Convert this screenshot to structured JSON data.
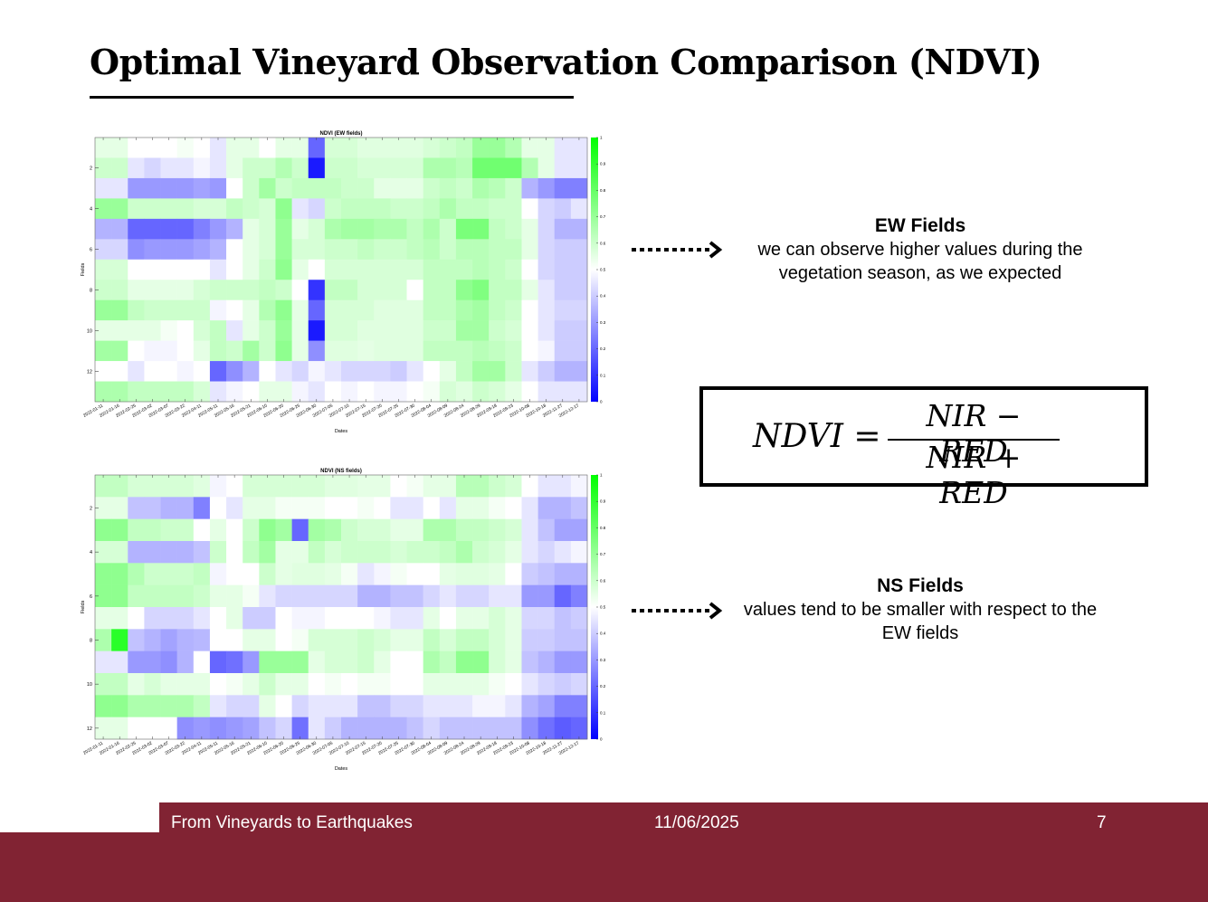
{
  "slide": {
    "title": "Optimal Vineyard Observation Comparison (NDVI)",
    "footer": {
      "left": "From Vineyards to Earthquakes",
      "center": "11/06/2025",
      "right": "7"
    },
    "accent_color": "#812333"
  },
  "notes": {
    "ew": {
      "heading": "EW Fields",
      "body": "we can observe higher values during the vegetation season, as we expected"
    },
    "ns": {
      "heading": "NS Fields",
      "body": "values tend to be smaller with respect to the EW fields"
    },
    "arrow_icon": "dotted-arrow-right"
  },
  "formula": {
    "lhs": "NDVI =",
    "numerator": "NIR − RED",
    "denominator": "NIR + RED"
  },
  "chart_data": [
    {
      "type": "heatmap",
      "title": "NDVI (EW fields)",
      "xlabel": "Dates",
      "ylabel": "Fields",
      "x_tick_labels": [
        "2022-01-11",
        "2022-01-16",
        "2022-02-25",
        "2022-03-02",
        "2022-03-07",
        "2022-03-22",
        "2022-04-11",
        "2022-05-11",
        "2022-05-16",
        "2022-05-21",
        "2022-06-10",
        "2022-06-20",
        "2022-06-25",
        "2022-06-30",
        "2022-07-05",
        "2022-07-10",
        "2022-07-15",
        "2022-07-20",
        "2022-07-25",
        "2022-07-30",
        "2022-08-04",
        "2022-08-09",
        "2022-08-24",
        "2022-08-29",
        "2022-09-18",
        "2022-09-23",
        "2022-10-08",
        "2022-10-18",
        "2022-11-27",
        "2022-12-17"
      ],
      "y_tick_labels": [
        "2",
        "4",
        "6",
        "8",
        "10",
        "12"
      ],
      "colorbar_ticks": [
        "0",
        "0.1",
        "0.2",
        "0.3",
        "0.4",
        "0.5",
        "0.6",
        "0.7",
        "0.8",
        "0.9",
        "1"
      ],
      "colormap": [
        "#0000ff",
        "#ffffff",
        "#00ff00"
      ],
      "vmin": 0,
      "vmax": 1,
      "values": [
        [
          0.55,
          0.55,
          0.5,
          0.5,
          0.5,
          0.52,
          0.5,
          0.45,
          0.55,
          0.55,
          0.5,
          0.55,
          0.55,
          0.2,
          0.58,
          0.58,
          0.56,
          0.56,
          0.56,
          0.56,
          0.58,
          0.6,
          0.62,
          0.7,
          0.7,
          0.65,
          0.55,
          0.55,
          0.45,
          0.45
        ],
        [
          0.6,
          0.6,
          0.45,
          0.42,
          0.45,
          0.45,
          0.48,
          0.45,
          0.55,
          0.6,
          0.6,
          0.65,
          0.6,
          0.05,
          0.6,
          0.6,
          0.58,
          0.58,
          0.58,
          0.58,
          0.66,
          0.66,
          0.64,
          0.78,
          0.78,
          0.78,
          0.65,
          0.55,
          0.45,
          0.45
        ],
        [
          0.45,
          0.45,
          0.3,
          0.3,
          0.3,
          0.3,
          0.32,
          0.3,
          0.5,
          0.6,
          0.68,
          0.6,
          0.62,
          0.62,
          0.62,
          0.6,
          0.6,
          0.55,
          0.55,
          0.55,
          0.6,
          0.62,
          0.6,
          0.66,
          0.64,
          0.6,
          0.35,
          0.3,
          0.25,
          0.25
        ],
        [
          0.7,
          0.7,
          0.6,
          0.6,
          0.6,
          0.6,
          0.58,
          0.58,
          0.62,
          0.6,
          0.58,
          0.72,
          0.45,
          0.42,
          0.6,
          0.62,
          0.62,
          0.62,
          0.6,
          0.6,
          0.62,
          0.66,
          0.62,
          0.62,
          0.6,
          0.6,
          0.5,
          0.42,
          0.4,
          0.45
        ],
        [
          0.35,
          0.35,
          0.2,
          0.2,
          0.2,
          0.2,
          0.25,
          0.3,
          0.35,
          0.55,
          0.58,
          0.7,
          0.55,
          0.58,
          0.66,
          0.68,
          0.68,
          0.66,
          0.66,
          0.62,
          0.66,
          0.6,
          0.76,
          0.76,
          0.62,
          0.6,
          0.55,
          0.42,
          0.35,
          0.35
        ],
        [
          0.42,
          0.42,
          0.28,
          0.3,
          0.3,
          0.3,
          0.32,
          0.35,
          0.5,
          0.55,
          0.58,
          0.7,
          0.58,
          0.58,
          0.6,
          0.6,
          0.62,
          0.6,
          0.6,
          0.62,
          0.64,
          0.6,
          0.64,
          0.64,
          0.62,
          0.62,
          0.55,
          0.42,
          0.4,
          0.4
        ],
        [
          0.58,
          0.58,
          0.5,
          0.5,
          0.5,
          0.5,
          0.5,
          0.45,
          0.5,
          0.55,
          0.6,
          0.72,
          0.55,
          0.5,
          0.58,
          0.58,
          0.58,
          0.58,
          0.58,
          0.58,
          0.62,
          0.62,
          0.62,
          0.64,
          0.62,
          0.6,
          0.5,
          0.42,
          0.4,
          0.4
        ],
        [
          0.6,
          0.6,
          0.55,
          0.55,
          0.55,
          0.55,
          0.58,
          0.6,
          0.6,
          0.6,
          0.62,
          0.6,
          0.5,
          0.1,
          0.62,
          0.62,
          0.58,
          0.58,
          0.58,
          0.5,
          0.62,
          0.62,
          0.72,
          0.75,
          0.62,
          0.62,
          0.55,
          0.45,
          0.4,
          0.4
        ],
        [
          0.7,
          0.7,
          0.62,
          0.6,
          0.6,
          0.6,
          0.6,
          0.48,
          0.5,
          0.55,
          0.65,
          0.72,
          0.55,
          0.2,
          0.58,
          0.58,
          0.58,
          0.56,
          0.56,
          0.56,
          0.62,
          0.62,
          0.66,
          0.68,
          0.62,
          0.6,
          0.5,
          0.45,
          0.42,
          0.42
        ],
        [
          0.55,
          0.55,
          0.55,
          0.55,
          0.52,
          0.5,
          0.58,
          0.62,
          0.45,
          0.55,
          0.6,
          0.7,
          0.55,
          0.05,
          0.58,
          0.58,
          0.56,
          0.56,
          0.56,
          0.56,
          0.6,
          0.6,
          0.68,
          0.68,
          0.6,
          0.58,
          0.5,
          0.45,
          0.4,
          0.4
        ],
        [
          0.68,
          0.68,
          0.5,
          0.48,
          0.48,
          0.5,
          0.55,
          0.62,
          0.6,
          0.68,
          0.6,
          0.72,
          0.55,
          0.28,
          0.56,
          0.56,
          0.55,
          0.56,
          0.56,
          0.56,
          0.62,
          0.62,
          0.62,
          0.64,
          0.62,
          0.6,
          0.5,
          0.48,
          0.4,
          0.4
        ],
        [
          0.5,
          0.5,
          0.45,
          0.5,
          0.5,
          0.48,
          0.5,
          0.2,
          0.28,
          0.35,
          0.5,
          0.45,
          0.42,
          0.48,
          0.45,
          0.42,
          0.42,
          0.42,
          0.4,
          0.45,
          0.5,
          0.55,
          0.62,
          0.68,
          0.68,
          0.6,
          0.45,
          0.4,
          0.35,
          0.35
        ],
        [
          0.66,
          0.66,
          0.62,
          0.62,
          0.62,
          0.62,
          0.58,
          0.45,
          0.48,
          0.5,
          0.55,
          0.55,
          0.48,
          0.45,
          0.5,
          0.48,
          0.5,
          0.48,
          0.48,
          0.5,
          0.52,
          0.58,
          0.56,
          0.6,
          0.58,
          0.55,
          0.5,
          0.45,
          0.45,
          0.45
        ]
      ]
    },
    {
      "type": "heatmap",
      "title": "NDVI (NS fields)",
      "xlabel": "Dates",
      "ylabel": "Fields",
      "x_tick_labels": [
        "2022-01-11",
        "2022-01-16",
        "2022-02-25",
        "2022-03-02",
        "2022-03-07",
        "2022-03-22",
        "2022-04-11",
        "2022-05-11",
        "2022-05-16",
        "2022-05-21",
        "2022-06-10",
        "2022-06-20",
        "2022-06-25",
        "2022-06-30",
        "2022-07-05",
        "2022-07-10",
        "2022-07-15",
        "2022-07-20",
        "2022-07-25",
        "2022-07-30",
        "2022-08-04",
        "2022-08-09",
        "2022-08-24",
        "2022-08-29",
        "2022-09-18",
        "2022-09-23",
        "2022-10-08",
        "2022-10-18",
        "2022-11-27",
        "2022-12-17"
      ],
      "y_tick_labels": [
        "2",
        "4",
        "6",
        "8",
        "10",
        "12"
      ],
      "colorbar_ticks": [
        "0",
        "0.1",
        "0.2",
        "0.3",
        "0.4",
        "0.5",
        "0.6",
        "0.7",
        "0.8",
        "0.9",
        "1"
      ],
      "colormap": [
        "#0000ff",
        "#ffffff",
        "#00ff00"
      ],
      "vmin": 0,
      "vmax": 1,
      "values": [
        [
          0.62,
          0.62,
          0.58,
          0.58,
          0.58,
          0.58,
          0.56,
          0.48,
          0.5,
          0.58,
          0.58,
          0.58,
          0.58,
          0.58,
          0.56,
          0.56,
          0.55,
          0.55,
          0.5,
          0.52,
          0.55,
          0.55,
          0.64,
          0.64,
          0.6,
          0.58,
          0.5,
          0.45,
          0.45,
          0.48
        ],
        [
          0.55,
          0.55,
          0.38,
          0.38,
          0.35,
          0.35,
          0.25,
          0.5,
          0.45,
          0.55,
          0.55,
          0.52,
          0.52,
          0.52,
          0.5,
          0.5,
          0.52,
          0.5,
          0.45,
          0.45,
          0.5,
          0.45,
          0.55,
          0.55,
          0.52,
          0.5,
          0.45,
          0.35,
          0.35,
          0.38
        ],
        [
          0.72,
          0.72,
          0.62,
          0.62,
          0.6,
          0.6,
          0.5,
          0.55,
          0.5,
          0.6,
          0.72,
          0.68,
          0.2,
          0.68,
          0.66,
          0.6,
          0.58,
          0.58,
          0.55,
          0.55,
          0.66,
          0.66,
          0.62,
          0.62,
          0.6,
          0.58,
          0.45,
          0.38,
          0.32,
          0.32
        ],
        [
          0.58,
          0.58,
          0.35,
          0.35,
          0.35,
          0.35,
          0.38,
          0.6,
          0.5,
          0.62,
          0.68,
          0.55,
          0.55,
          0.62,
          0.58,
          0.6,
          0.6,
          0.6,
          0.58,
          0.6,
          0.6,
          0.62,
          0.66,
          0.6,
          0.58,
          0.55,
          0.45,
          0.42,
          0.45,
          0.48
        ],
        [
          0.72,
          0.72,
          0.65,
          0.6,
          0.6,
          0.6,
          0.62,
          0.48,
          0.5,
          0.5,
          0.6,
          0.55,
          0.56,
          0.56,
          0.55,
          0.52,
          0.45,
          0.48,
          0.52,
          0.5,
          0.5,
          0.55,
          0.56,
          0.56,
          0.55,
          0.5,
          0.4,
          0.38,
          0.35,
          0.35
        ],
        [
          0.72,
          0.72,
          0.62,
          0.62,
          0.62,
          0.62,
          0.6,
          0.55,
          0.55,
          0.52,
          0.45,
          0.42,
          0.42,
          0.42,
          0.42,
          0.42,
          0.35,
          0.35,
          0.38,
          0.38,
          0.42,
          0.45,
          0.42,
          0.42,
          0.45,
          0.45,
          0.3,
          0.3,
          0.2,
          0.25
        ],
        [
          0.55,
          0.55,
          0.5,
          0.42,
          0.42,
          0.42,
          0.45,
          0.5,
          0.55,
          0.4,
          0.4,
          0.5,
          0.48,
          0.48,
          0.5,
          0.5,
          0.5,
          0.48,
          0.45,
          0.45,
          0.55,
          0.5,
          0.55,
          0.55,
          0.58,
          0.55,
          0.42,
          0.42,
          0.38,
          0.4
        ],
        [
          0.66,
          0.92,
          0.38,
          0.35,
          0.32,
          0.35,
          0.36,
          0.5,
          0.5,
          0.55,
          0.55,
          0.5,
          0.52,
          0.58,
          0.58,
          0.58,
          0.6,
          0.58,
          0.55,
          0.55,
          0.62,
          0.58,
          0.62,
          0.62,
          0.58,
          0.55,
          0.4,
          0.4,
          0.38,
          0.38
        ],
        [
          0.45,
          0.45,
          0.3,
          0.3,
          0.28,
          0.35,
          0.5,
          0.2,
          0.22,
          0.3,
          0.7,
          0.7,
          0.7,
          0.55,
          0.58,
          0.58,
          0.6,
          0.55,
          0.5,
          0.5,
          0.66,
          0.62,
          0.72,
          0.72,
          0.58,
          0.55,
          0.38,
          0.35,
          0.3,
          0.3
        ],
        [
          0.62,
          0.62,
          0.55,
          0.58,
          0.55,
          0.55,
          0.55,
          0.5,
          0.52,
          0.55,
          0.6,
          0.55,
          0.55,
          0.5,
          0.52,
          0.5,
          0.52,
          0.52,
          0.5,
          0.5,
          0.55,
          0.55,
          0.55,
          0.55,
          0.52,
          0.5,
          0.45,
          0.42,
          0.4,
          0.42
        ],
        [
          0.72,
          0.72,
          0.66,
          0.66,
          0.66,
          0.66,
          0.62,
          0.45,
          0.42,
          0.42,
          0.55,
          0.5,
          0.42,
          0.45,
          0.45,
          0.45,
          0.38,
          0.38,
          0.42,
          0.42,
          0.45,
          0.45,
          0.45,
          0.48,
          0.48,
          0.45,
          0.35,
          0.32,
          0.25,
          0.25
        ],
        [
          0.55,
          0.55,
          0.5,
          0.5,
          0.5,
          0.28,
          0.3,
          0.28,
          0.3,
          0.32,
          0.38,
          0.42,
          0.22,
          0.45,
          0.4,
          0.35,
          0.35,
          0.35,
          0.35,
          0.38,
          0.42,
          0.38,
          0.38,
          0.38,
          0.38,
          0.38,
          0.28,
          0.22,
          0.18,
          0.2
        ]
      ]
    }
  ]
}
